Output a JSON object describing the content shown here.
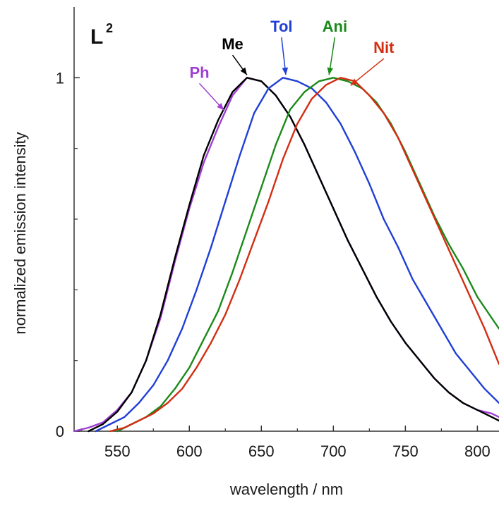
{
  "chart_data": {
    "type": "line",
    "title": "",
    "panel_label": "L",
    "panel_label_sup": "2",
    "xlabel": "wavelength / nm",
    "ylabel": "normalized emission intensity",
    "xlim": [
      520,
      815
    ],
    "ylim": [
      0,
      1.2
    ],
    "x_ticks": [
      550,
      600,
      650,
      700,
      750,
      800
    ],
    "x_tick_labels": [
      "550",
      "600",
      "650",
      "700",
      "750",
      "800"
    ],
    "y_ticks": [
      0,
      1
    ],
    "y_tick_labels": [
      "0",
      "1"
    ],
    "y_minor_ticks": [
      0.2,
      0.4,
      0.6,
      0.8
    ],
    "grid": false,
    "series": [
      {
        "name": "Ph",
        "color": "#a03fd3",
        "x": [
          520,
          530,
          540,
          550,
          560,
          570,
          580,
          590,
          600,
          610,
          620,
          630,
          640,
          650,
          660,
          670,
          680,
          690,
          700,
          710,
          720,
          730,
          740,
          750,
          760,
          770,
          780,
          790,
          800,
          810,
          815
        ],
        "y": [
          0.0,
          0.01,
          0.025,
          0.06,
          0.11,
          0.2,
          0.32,
          0.48,
          0.63,
          0.76,
          0.86,
          0.95,
          1.0,
          0.99,
          0.95,
          0.89,
          0.81,
          0.72,
          0.63,
          0.54,
          0.46,
          0.38,
          0.31,
          0.25,
          0.2,
          0.15,
          0.11,
          0.08,
          0.06,
          0.05,
          0.04
        ]
      },
      {
        "name": "Me",
        "color": "#000000",
        "x": [
          530,
          540,
          550,
          560,
          570,
          580,
          590,
          600,
          610,
          620,
          630,
          640,
          650,
          660,
          670,
          680,
          690,
          700,
          710,
          720,
          730,
          740,
          750,
          760,
          770,
          780,
          790,
          800,
          810,
          815
        ],
        "y": [
          0.0,
          0.02,
          0.055,
          0.11,
          0.2,
          0.33,
          0.49,
          0.64,
          0.78,
          0.88,
          0.96,
          1.0,
          0.99,
          0.95,
          0.89,
          0.81,
          0.72,
          0.63,
          0.54,
          0.46,
          0.38,
          0.31,
          0.25,
          0.2,
          0.15,
          0.11,
          0.08,
          0.06,
          0.04,
          0.03
        ]
      },
      {
        "name": "Tol",
        "color": "#1f3fd6",
        "x": [
          535,
          545,
          555,
          565,
          575,
          585,
          595,
          605,
          615,
          625,
          635,
          645,
          655,
          665,
          675,
          685,
          695,
          705,
          715,
          725,
          735,
          745,
          755,
          765,
          775,
          785,
          795,
          805,
          815
        ],
        "y": [
          0.0,
          0.02,
          0.04,
          0.08,
          0.13,
          0.2,
          0.29,
          0.4,
          0.52,
          0.65,
          0.78,
          0.9,
          0.97,
          1.0,
          0.99,
          0.97,
          0.93,
          0.87,
          0.79,
          0.7,
          0.6,
          0.52,
          0.43,
          0.36,
          0.29,
          0.22,
          0.17,
          0.12,
          0.08
        ]
      },
      {
        "name": "Ani",
        "color": "#1a8a1a",
        "x": [
          550,
          560,
          570,
          580,
          590,
          600,
          610,
          620,
          630,
          640,
          650,
          660,
          670,
          680,
          690,
          700,
          710,
          720,
          730,
          740,
          750,
          760,
          770,
          780,
          790,
          800,
          810,
          815
        ],
        "y": [
          0.0,
          0.02,
          0.04,
          0.07,
          0.12,
          0.18,
          0.26,
          0.34,
          0.45,
          0.57,
          0.69,
          0.81,
          0.91,
          0.96,
          0.99,
          1.0,
          0.99,
          0.97,
          0.93,
          0.87,
          0.79,
          0.7,
          0.61,
          0.53,
          0.46,
          0.38,
          0.32,
          0.29
        ]
      },
      {
        "name": "Nit",
        "color": "#d22e12",
        "x": [
          545,
          555,
          565,
          575,
          585,
          595,
          605,
          615,
          625,
          635,
          645,
          655,
          665,
          675,
          685,
          695,
          705,
          715,
          725,
          735,
          745,
          755,
          765,
          775,
          785,
          795,
          805,
          815
        ],
        "y": [
          0.0,
          0.01,
          0.03,
          0.05,
          0.08,
          0.12,
          0.18,
          0.25,
          0.33,
          0.43,
          0.54,
          0.65,
          0.77,
          0.87,
          0.94,
          0.98,
          1.0,
          0.99,
          0.95,
          0.9,
          0.83,
          0.74,
          0.65,
          0.56,
          0.47,
          0.38,
          0.29,
          0.19
        ]
      }
    ],
    "annotations": [
      {
        "label": "Me",
        "series": "Me",
        "text_at": [
          630,
          1.08
        ],
        "arrow_to": [
          640,
          1.0
        ]
      },
      {
        "label": "Ph",
        "series": "Ph",
        "text_at": [
          607,
          1.0
        ],
        "arrow_to": [
          624,
          0.9
        ]
      },
      {
        "label": "Tol",
        "series": "Tol",
        "text_at": [
          664,
          1.13
        ],
        "arrow_to": [
          667,
          1.0
        ]
      },
      {
        "label": "Ani",
        "series": "Ani",
        "text_at": [
          701,
          1.13
        ],
        "arrow_to": [
          697,
          1.0
        ]
      },
      {
        "label": "Nit",
        "series": "Nit",
        "text_at": [
          735,
          1.07
        ],
        "arrow_to": [
          712,
          0.97
        ]
      }
    ]
  }
}
